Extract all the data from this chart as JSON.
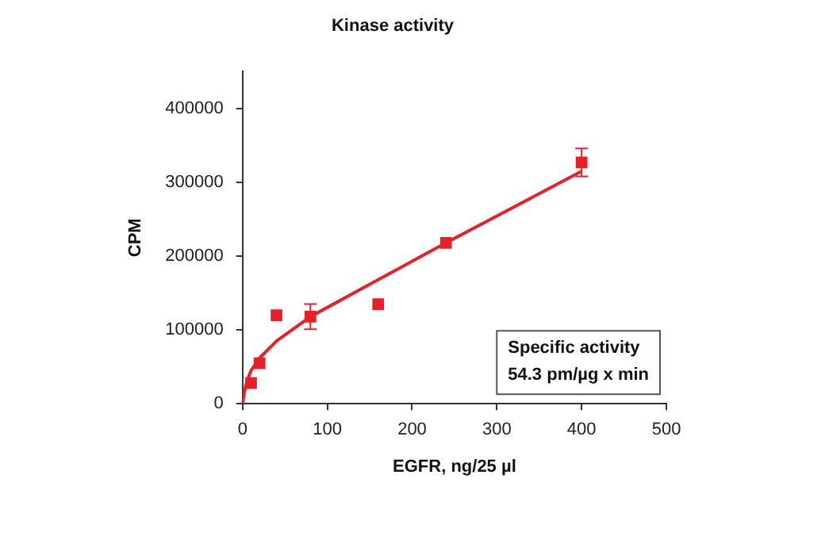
{
  "chart_data": {
    "type": "scatter",
    "title": "Kinase activity",
    "xlabel": "EGFR, ng/25 µl",
    "ylabel": "CPM",
    "xlim": [
      0,
      500
    ],
    "xticks": [
      0,
      100,
      200,
      300,
      400,
      500
    ],
    "ylim": [
      0,
      450000
    ],
    "yticks": [
      0,
      100000,
      200000,
      300000,
      400000
    ],
    "grid": false,
    "legend": false,
    "marker": "square",
    "series": [
      {
        "type": "scatter",
        "color": "#e8202a",
        "x": [
          10,
          20,
          40,
          80,
          160,
          240,
          400
        ],
        "values": [
          28000,
          55000,
          120000,
          118000,
          135000,
          218000,
          327000
        ],
        "errors": [
          null,
          null,
          null,
          17000,
          null,
          null,
          19000
        ]
      },
      {
        "type": "line",
        "color": "#e8202a",
        "marker": "none",
        "x": [
          0,
          2,
          5,
          10,
          20,
          40,
          80,
          160,
          240,
          400
        ],
        "values": [
          0,
          15000,
          30000,
          45000,
          62000,
          85000,
          118000,
          168000,
          218000,
          315000
        ]
      }
    ],
    "annotations": [
      "Specific activity\n54.3 pm/µg x min"
    ]
  }
}
